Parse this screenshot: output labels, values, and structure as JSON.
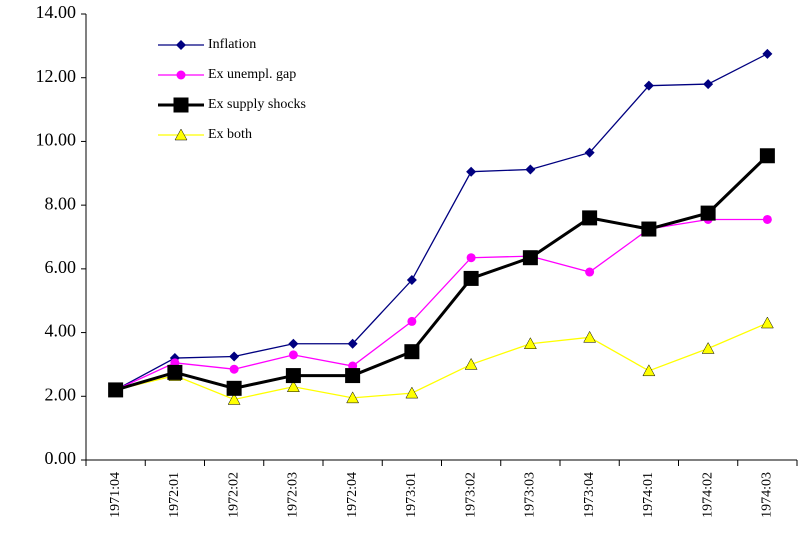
{
  "chart_data": {
    "type": "line",
    "categories": [
      "1971:04",
      "1972:01",
      "1972:02",
      "1972:03",
      "1972:04",
      "1973:01",
      "1973:02",
      "1973:03",
      "1973:04",
      "1974:01",
      "1974:02",
      "1974:03"
    ],
    "series": [
      {
        "name": "Inflation",
        "color": "#000080",
        "marker": "diamond",
        "values": [
          2.2,
          3.2,
          3.25,
          3.65,
          3.65,
          5.65,
          9.05,
          9.12,
          9.65,
          11.75,
          11.8,
          12.75
        ]
      },
      {
        "name": "Ex unempl. gap",
        "color": "#ff00ff",
        "marker": "circle",
        "values": [
          2.2,
          3.05,
          2.85,
          3.3,
          2.95,
          4.35,
          6.35,
          6.4,
          5.9,
          7.25,
          7.55,
          7.55
        ]
      },
      {
        "name": "Ex supply shocks",
        "color": "#000000",
        "marker": "square",
        "values": [
          2.2,
          2.75,
          2.25,
          2.65,
          2.65,
          3.4,
          5.7,
          6.35,
          7.6,
          7.25,
          7.75,
          9.55
        ]
      },
      {
        "name": "Ex both",
        "color": "#ffff00",
        "marker": "triangle",
        "values": [
          2.2,
          2.65,
          1.9,
          2.3,
          1.95,
          2.1,
          3.0,
          3.65,
          3.85,
          2.8,
          3.5,
          4.3
        ]
      }
    ],
    "ylim": [
      0,
      14
    ],
    "yticks": [
      {
        "value": 0,
        "label": "0.00"
      },
      {
        "value": 2,
        "label": "2.00"
      },
      {
        "value": 4,
        "label": "4.00"
      },
      {
        "value": 6,
        "label": "6.00"
      },
      {
        "value": 8,
        "label": "8.00"
      },
      {
        "value": 10,
        "label": "10.00"
      },
      {
        "value": 12,
        "label": "12.00"
      },
      {
        "value": 14,
        "label": "14.00"
      }
    ],
    "legend": "top-left"
  }
}
